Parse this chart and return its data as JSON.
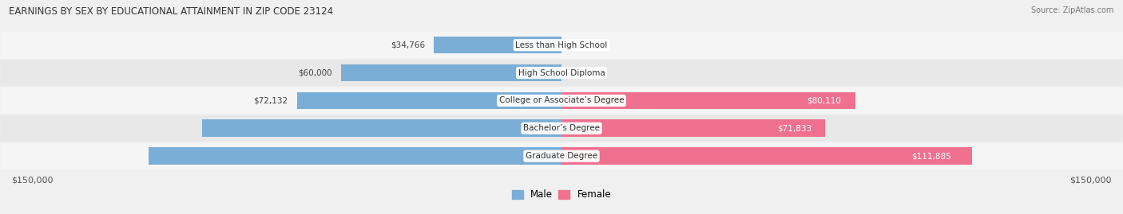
{
  "title": "EARNINGS BY SEX BY EDUCATIONAL ATTAINMENT IN ZIP CODE 23124",
  "source": "Source: ZipAtlas.com",
  "categories": [
    "Less than High School",
    "High School Diploma",
    "College or Associate’s Degree",
    "Bachelor’s Degree",
    "Graduate Degree"
  ],
  "male_values": [
    34766,
    60000,
    72132,
    98083,
    112656
  ],
  "female_values": [
    0,
    0,
    80110,
    71833,
    111885
  ],
  "male_color": "#7aaed6",
  "female_color": "#f07090",
  "bar_height": 0.62,
  "xlim": 150000,
  "xlabel_left": "$150,000",
  "xlabel_right": "$150,000",
  "legend_male": "Male",
  "legend_female": "Female",
  "background_color": "#f0f0f0",
  "row_colors": [
    "#f5f5f5",
    "#e8e8e8",
    "#f5f5f5",
    "#e8e8e8",
    "#f5f5f5"
  ]
}
